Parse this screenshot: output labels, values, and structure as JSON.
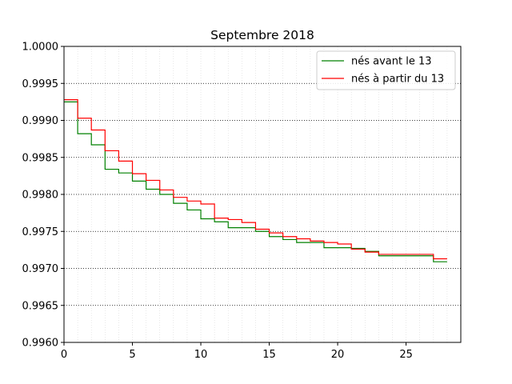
{
  "chart_data": {
    "type": "line",
    "step": "post",
    "title": "Septembre 2018",
    "xlabel": "",
    "ylabel": "",
    "xlim": [
      0,
      29
    ],
    "ylim": [
      0.996,
      1.0
    ],
    "x_ticks": [
      0,
      5,
      10,
      15,
      20,
      25
    ],
    "x_tick_labels": [
      "0",
      "5",
      "10",
      "15",
      "20",
      "25"
    ],
    "y_ticks": [
      0.996,
      0.9965,
      0.997,
      0.9975,
      0.998,
      0.9985,
      0.999,
      0.9995,
      1.0
    ],
    "y_tick_labels": [
      "0.9960",
      "0.9965",
      "0.9970",
      "0.9975",
      "0.9980",
      "0.9985",
      "0.9990",
      "0.9995",
      "1.0000"
    ],
    "grid": {
      "y_major": true,
      "x_minor": true,
      "style": "dotted"
    },
    "legend": "top-right",
    "x": [
      0,
      1,
      2,
      3,
      4,
      5,
      6,
      7,
      8,
      9,
      10,
      11,
      12,
      13,
      14,
      15,
      16,
      17,
      18,
      19,
      20,
      21,
      22,
      23,
      24,
      25,
      26,
      27,
      28
    ],
    "series": [
      {
        "name": "nés avant le 13",
        "color": "#008000",
        "values": [
          0.99925,
          0.99882,
          0.99867,
          0.99834,
          0.99829,
          0.99818,
          0.99807,
          0.998,
          0.99788,
          0.99779,
          0.99767,
          0.99763,
          0.99755,
          0.99755,
          0.9975,
          0.99743,
          0.99739,
          0.99735,
          0.99735,
          0.99728,
          0.99728,
          0.99727,
          0.99723,
          0.99717,
          0.99717,
          0.99717,
          0.99717,
          0.99709,
          0.99709
        ]
      },
      {
        "name": "nés à partir du 13",
        "color": "#ff0000",
        "values": [
          0.99928,
          0.99903,
          0.99887,
          0.99859,
          0.99845,
          0.99828,
          0.99819,
          0.99806,
          0.99796,
          0.99791,
          0.99787,
          0.99768,
          0.99766,
          0.99762,
          0.99753,
          0.99748,
          0.99743,
          0.9974,
          0.99737,
          0.99735,
          0.99733,
          0.99726,
          0.99722,
          0.99719,
          0.99719,
          0.99719,
          0.99719,
          0.99713,
          0.99713
        ]
      }
    ]
  }
}
